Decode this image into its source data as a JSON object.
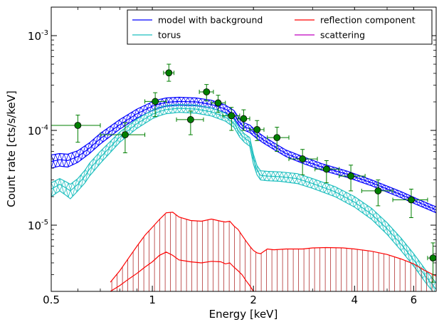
{
  "chart_data": {
    "type": "line",
    "xlabel": "Energy [keV]",
    "ylabel": "Count rate [cts/s/keV]",
    "xscale": "log",
    "yscale": "log",
    "xlim": [
      0.5,
      7.0
    ],
    "ylim": [
      2e-06,
      0.002
    ],
    "xticks": [
      {
        "value": 0.5,
        "label": "0.5"
      },
      {
        "value": 1,
        "label": "1"
      },
      {
        "value": 2,
        "label": "2"
      },
      {
        "value": 4,
        "label": "4"
      },
      {
        "value": 6,
        "label": "6"
      }
    ],
    "yticks": [
      {
        "value": 1e-05,
        "base": "10",
        "exp": "-5"
      },
      {
        "value": 0.0001,
        "base": "10",
        "exp": "-4"
      },
      {
        "value": 0.001,
        "base": "10",
        "exp": "-3"
      }
    ],
    "grid": false,
    "legend": {
      "placement": "top-right",
      "columns": 2,
      "entries": [
        {
          "label": "model with background",
          "color": "#0000ff"
        },
        {
          "label": "torus",
          "color": "#1fbfbf"
        },
        {
          "label": "reflection component",
          "color": "#ff0000"
        },
        {
          "label": "scattering",
          "color": "#bf00bf"
        }
      ]
    },
    "series": [
      {
        "name": "model with background",
        "color": "#0000ff",
        "style": "band",
        "x": [
          0.5,
          0.53,
          0.56,
          0.6,
          0.65,
          0.7,
          0.8,
          0.9,
          1.0,
          1.05,
          1.1,
          1.2,
          1.35,
          1.5,
          1.65,
          1.75,
          1.82,
          1.88,
          1.95,
          2.05,
          2.15,
          2.3,
          2.5,
          2.8,
          3.2,
          3.8,
          4.5,
          5.5,
          6.2,
          7.0
        ],
        "lower": [
          4e-05,
          4.2e-05,
          4.1e-05,
          4.6e-05,
          5.7e-05,
          7.2e-05,
          0.000103,
          0.000135,
          0.000162,
          0.000172,
          0.00018,
          0.000184,
          0.000182,
          0.000172,
          0.000154,
          0.000135,
          0.00011,
          0.0001,
          9.5e-05,
          8.2e-05,
          7.3e-05,
          6.3e-05,
          5.3e-05,
          4.5e-05,
          3.8e-05,
          3.2e-05,
          2.6e-05,
          1.95e-05,
          1.62e-05,
          1.35e-05
        ],
        "mid": [
          4.7e-05,
          4.9e-05,
          4.8e-05,
          5.3e-05,
          6.5e-05,
          8.2e-05,
          0.000115,
          0.00015,
          0.00018,
          0.00019,
          0.000198,
          0.000202,
          0.0002,
          0.000188,
          0.000168,
          0.000147,
          0.00012,
          0.000109,
          0.000104,
          8.9e-05,
          7.9e-05,
          6.8e-05,
          5.7e-05,
          4.85e-05,
          4.1e-05,
          3.45e-05,
          2.8e-05,
          2.1e-05,
          1.74e-05,
          1.45e-05
        ],
        "upper": [
          5.5e-05,
          5.7e-05,
          5.6e-05,
          6.1e-05,
          7.4e-05,
          9.3e-05,
          0.00013,
          0.000168,
          0.0002,
          0.000212,
          0.00022,
          0.000224,
          0.00022,
          0.000208,
          0.000185,
          0.000162,
          0.000132,
          0.00012,
          0.000114,
          9.7e-05,
          8.6e-05,
          7.4e-05,
          6.2e-05,
          5.3e-05,
          4.45e-05,
          3.72e-05,
          3e-05,
          2.26e-05,
          1.87e-05,
          1.56e-05
        ]
      },
      {
        "name": "torus",
        "color": "#1fbfbf",
        "style": "band",
        "x": [
          0.5,
          0.53,
          0.55,
          0.57,
          0.6,
          0.63,
          0.65,
          0.7,
          0.8,
          0.9,
          1.0,
          1.05,
          1.1,
          1.2,
          1.35,
          1.5,
          1.65,
          1.75,
          1.82,
          1.88,
          1.95,
          2.0,
          2.05,
          2.1,
          2.2,
          2.4,
          2.7,
          3.0,
          3.5,
          4.0,
          4.5,
          5.0,
          5.5,
          6.0,
          6.5,
          7.0
        ],
        "lower": [
          2e-05,
          2.3e-05,
          2.1e-05,
          1.9e-05,
          2.3e-05,
          2.8e-05,
          3.3e-05,
          4.5e-05,
          7.5e-05,
          0.000105,
          0.000133,
          0.000143,
          0.00015,
          0.000155,
          0.000152,
          0.000142,
          0.000125,
          0.000108,
          8.5e-05,
          7.5e-05,
          6.8e-05,
          4.4e-05,
          3.4e-05,
          3e-05,
          2.95e-05,
          2.9e-05,
          2.75e-05,
          2.45e-05,
          2e-05,
          1.55e-05,
          1.15e-05,
          8e-06,
          5.4e-06,
          3.7e-06,
          2.5e-06,
          1.8e-06
        ],
        "mid": [
          2.4e-05,
          2.7e-05,
          2.5e-05,
          2.3e-05,
          2.7e-05,
          3.3e-05,
          3.9e-05,
          5.2e-05,
          8.5e-05,
          0.000118,
          0.000148,
          0.000158,
          0.000166,
          0.000171,
          0.000168,
          0.000157,
          0.000138,
          0.000119,
          9.4e-05,
          8.3e-05,
          7.6e-05,
          5e-05,
          3.8e-05,
          3.35e-05,
          3.3e-05,
          3.25e-05,
          3.1e-05,
          2.75e-05,
          2.25e-05,
          1.75e-05,
          1.3e-05,
          9.2e-06,
          6.3e-06,
          4.3e-06,
          2.9e-06,
          2.1e-06
        ],
        "upper": [
          2.8e-05,
          3.1e-05,
          2.9e-05,
          2.7e-05,
          3.1e-05,
          3.8e-05,
          4.5e-05,
          6e-05,
          9.6e-05,
          0.000132,
          0.000164,
          0.000175,
          0.000183,
          0.000188,
          0.000185,
          0.000173,
          0.000152,
          0.000131,
          0.000104,
          9.2e-05,
          8.4e-05,
          5.6e-05,
          4.25e-05,
          3.75e-05,
          3.7e-05,
          3.65e-05,
          3.5e-05,
          3.1e-05,
          2.55e-05,
          2e-05,
          1.5e-05,
          1.06e-05,
          7.3e-06,
          5e-06,
          3.4e-06,
          2.45e-06
        ]
      },
      {
        "name": "reflection component",
        "color": "#ff0000",
        "style": "band",
        "x": [
          0.75,
          0.8,
          0.85,
          0.9,
          0.95,
          1.0,
          1.05,
          1.1,
          1.15,
          1.2,
          1.3,
          1.4,
          1.5,
          1.6,
          1.65,
          1.7,
          1.75,
          1.8,
          1.85,
          1.9,
          1.95,
          2.0,
          2.05,
          2.1,
          2.2,
          2.3,
          2.5,
          2.8,
          3.0,
          3.3,
          3.7,
          4.0,
          4.5,
          5.0,
          5.5,
          6.0,
          6.5,
          7.0
        ],
        "lower": [
          2e-06,
          2.3e-06,
          2.7e-06,
          3.1e-06,
          3.6e-06,
          4.1e-06,
          4.8e-06,
          5.2e-06,
          4.8e-06,
          4.3e-06,
          4.1e-06,
          4e-06,
          4.15e-06,
          4.1e-06,
          3.9e-06,
          4e-06,
          3.6e-06,
          3.3e-06,
          3e-06,
          2.6e-06,
          2.3e-06,
          2e-06,
          1.9e-06,
          1.8e-06,
          1.8e-06,
          1.8e-06,
          1.85e-06,
          1.9e-06,
          1.9e-06,
          1.9e-06,
          1.85e-06,
          1.8e-06,
          1.7e-06,
          1.6e-06,
          1.5e-06,
          1.4e-06,
          1.3e-06,
          1.2e-06
        ],
        "upper": [
          2.5e-06,
          3.3e-06,
          4.5e-06,
          6e-06,
          7.8e-06,
          9.5e-06,
          1.15e-05,
          1.35e-05,
          1.37e-05,
          1.22e-05,
          1.12e-05,
          1.1e-05,
          1.16e-05,
          1.1e-05,
          1.08e-05,
          1.1e-05,
          9.8e-06,
          9e-06,
          7.8e-06,
          6.8e-06,
          6e-06,
          5.4e-06,
          5.1e-06,
          5e-06,
          5.6e-06,
          5.5e-06,
          5.6e-06,
          5.6e-06,
          5.75e-06,
          5.8e-06,
          5.75e-06,
          5.6e-06,
          5.3e-06,
          4.9e-06,
          4.4e-06,
          3.9e-06,
          3.3e-06,
          2.9e-06
        ]
      },
      {
        "name": "scattering",
        "color": "#bf00bf",
        "style": "line",
        "x": [],
        "y": []
      },
      {
        "name": "data",
        "color": "#007f00",
        "style": "errorbar",
        "points": [
          {
            "x": 0.6,
            "y": 0.000113,
            "xerr": [
              0.5,
              0.7
            ],
            "yerr": [
              7.5e-05,
              0.000145
            ]
          },
          {
            "x": 0.83,
            "y": 9e-05,
            "xerr": [
              0.7,
              0.95
            ],
            "yerr": [
              5.8e-05,
              0.00012
            ]
          },
          {
            "x": 1.02,
            "y": 0.000202,
            "xerr": [
              0.95,
              1.1
            ],
            "yerr": [
              0.00014,
              0.00025
            ]
          },
          {
            "x": 1.12,
            "y": 0.000405,
            "xerr": [
              1.08,
              1.16
            ],
            "yerr": [
              0.00033,
              0.0005
            ]
          },
          {
            "x": 1.3,
            "y": 0.00013,
            "xerr": [
              1.18,
              1.42
            ],
            "yerr": [
              9e-05,
              0.00016
            ]
          },
          {
            "x": 1.45,
            "y": 0.000255,
            "xerr": [
              1.38,
              1.52
            ],
            "yerr": [
              0.000205,
              0.000305
            ]
          },
          {
            "x": 1.57,
            "y": 0.000195,
            "xerr": [
              1.5,
              1.65
            ],
            "yerr": [
              0.000155,
              0.000235
            ]
          },
          {
            "x": 1.72,
            "y": 0.000143,
            "xerr": [
              1.62,
              1.82
            ],
            "yerr": [
              0.0001,
              0.000175
            ]
          },
          {
            "x": 1.87,
            "y": 0.000133,
            "xerr": [
              1.8,
              1.95
            ],
            "yerr": [
              0.0001,
              0.000165
            ]
          },
          {
            "x": 2.05,
            "y": 0.000102,
            "xerr": [
              1.95,
              2.15
            ],
            "yerr": [
              7.8e-05,
              0.000127
            ]
          },
          {
            "x": 2.35,
            "y": 8.4e-05,
            "xerr": [
              2.2,
              2.55
            ],
            "yerr": [
              6e-05,
              0.000108
            ]
          },
          {
            "x": 2.8,
            "y": 5e-05,
            "xerr": [
              2.55,
              3.1
            ],
            "yerr": [
              3.4e-05,
              6.3e-05
            ]
          },
          {
            "x": 3.3,
            "y": 3.9e-05,
            "xerr": [
              3.05,
              3.6
            ],
            "yerr": [
              2.8e-05,
              4.8e-05
            ]
          },
          {
            "x": 3.9,
            "y": 3.3e-05,
            "xerr": [
              3.6,
              4.3
            ],
            "yerr": [
              2.3e-05,
              4.3e-05
            ]
          },
          {
            "x": 4.7,
            "y": 2.3e-05,
            "xerr": [
              4.2,
              5.2
            ],
            "yerr": [
              1.6e-05,
              3e-05
            ]
          },
          {
            "x": 5.9,
            "y": 1.85e-05,
            "xerr": [
              5.2,
              6.6
            ],
            "yerr": [
              1.2e-05,
              2.4e-05
            ]
          },
          {
            "x": 6.85,
            "y": 4.5e-06,
            "xerr": [
              6.6,
              7.0
            ],
            "yerr": [
              2.5e-06,
              6.5e-06
            ]
          }
        ]
      }
    ]
  }
}
